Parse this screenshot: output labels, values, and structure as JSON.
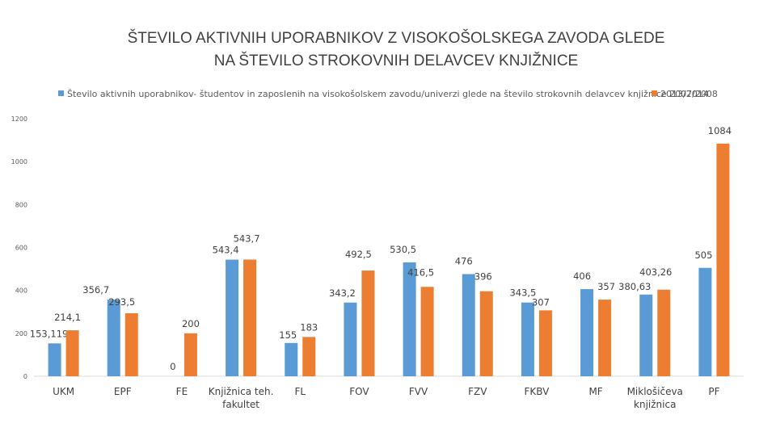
{
  "chart_data": {
    "type": "bar",
    "title_line1": "ŠTEVILO AKTIVNIH UPORABNIKOV Z VISOKOŠOLSKEGA ZAVODA GLEDE",
    "title_line2": "NA ŠTEVILO STROKOVNIH DELAVCEV KNJIŽNICE",
    "legend_position": "top",
    "grid": false,
    "ylim": [
      0,
      1200
    ],
    "yticks": [
      {
        "value": 0,
        "label": "0"
      },
      {
        "value": 200,
        "label": "200"
      },
      {
        "value": 400,
        "label": "400"
      },
      {
        "value": 600,
        "label": "600"
      },
      {
        "value": 800,
        "label": "800"
      },
      {
        "value": 1000,
        "label": "1000"
      },
      {
        "value": 1200,
        "label": "1200"
      }
    ],
    "categories": [
      [
        "UKM"
      ],
      [
        "EPF"
      ],
      [
        "FE"
      ],
      [
        "Knjižnica teh.",
        "fakultet"
      ],
      [
        "FL"
      ],
      [
        "FOV"
      ],
      [
        "FVV"
      ],
      [
        "FZV"
      ],
      [
        "FKBV"
      ],
      [
        "MF"
      ],
      [
        "Miklošičeva",
        "knjižnica"
      ],
      [
        "PF"
      ]
    ],
    "series": [
      {
        "name": "Število aktivnih uporabnikov- študentov in zaposlenih na visokošolskem zavodu/univerzi glede na število strokovnih delavcev knjižnice 2007/2008",
        "color": "#5B9BD5",
        "values": [
          153.119,
          356.7,
          null,
          543.4,
          155,
          343.2,
          530.5,
          476,
          343.5,
          406,
          380.63,
          505
        ],
        "labels": [
          "153,119",
          "356,7",
          "",
          "543,4",
          "155",
          "343,2",
          "530,5",
          "476",
          "343,5",
          "406",
          "380,63",
          "505"
        ]
      },
      {
        "name": "2013/2014",
        "color": "#ED7D31",
        "values": [
          214.1,
          293.5,
          200,
          543.7,
          183,
          492.5,
          416.5,
          396,
          307,
          357,
          403.26,
          1084
        ],
        "labels": [
          "214,1",
          "293,5",
          "200",
          "543,7",
          "183",
          "492,5",
          "416,5",
          "396",
          "307",
          "357",
          "403,26",
          "1084"
        ]
      }
    ],
    "extra_labels": [
      {
        "category": 2,
        "series": 0,
        "text": "0"
      }
    ]
  }
}
